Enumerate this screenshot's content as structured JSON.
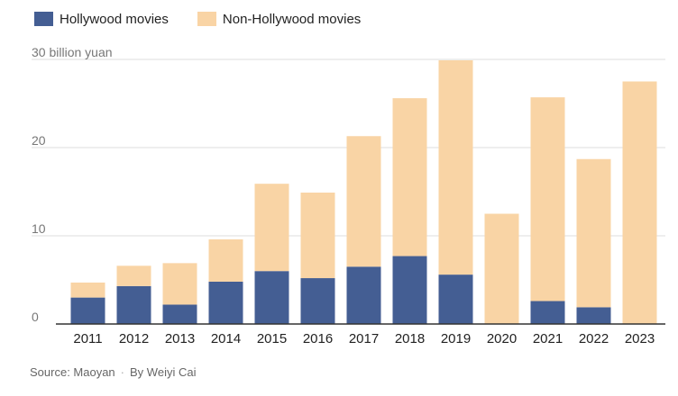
{
  "colors": {
    "hollywood": "#445e93",
    "non_hollywood": "#f9d4a5",
    "grid": "#dddddd",
    "baseline": "#333333",
    "axis_text": "#222222",
    "tick_text": "#777777"
  },
  "legend": {
    "hollywood_label": "Hollywood movies",
    "non_hollywood_label": "Non-Hollywood movies"
  },
  "footer": {
    "source": "Source: Maoyan",
    "separator": "·",
    "byline": "By Weiyi Cai"
  },
  "chart_data": {
    "type": "bar",
    "stacked": true,
    "categories": [
      "2011",
      "2012",
      "2013",
      "2014",
      "2015",
      "2016",
      "2017",
      "2018",
      "2019",
      "2020",
      "2021",
      "2022",
      "2023"
    ],
    "series": [
      {
        "name": "Hollywood movies",
        "values": [
          3.0,
          4.3,
          2.2,
          4.8,
          6.0,
          5.2,
          6.5,
          7.7,
          5.6,
          0,
          2.6,
          1.9,
          0
        ]
      },
      {
        "name": "Non-Hollywood movies",
        "values": [
          1.7,
          2.3,
          4.7,
          4.8,
          9.9,
          9.7,
          14.8,
          17.9,
          24.3,
          12.5,
          23.1,
          16.8,
          27.5
        ]
      }
    ],
    "ylim": [
      0,
      30
    ],
    "yticks": [
      0,
      10,
      20,
      30
    ],
    "ytick_labels": [
      "0",
      "10",
      "20",
      "30 billion yuan"
    ],
    "grid": true,
    "legend_position": "top-left"
  }
}
